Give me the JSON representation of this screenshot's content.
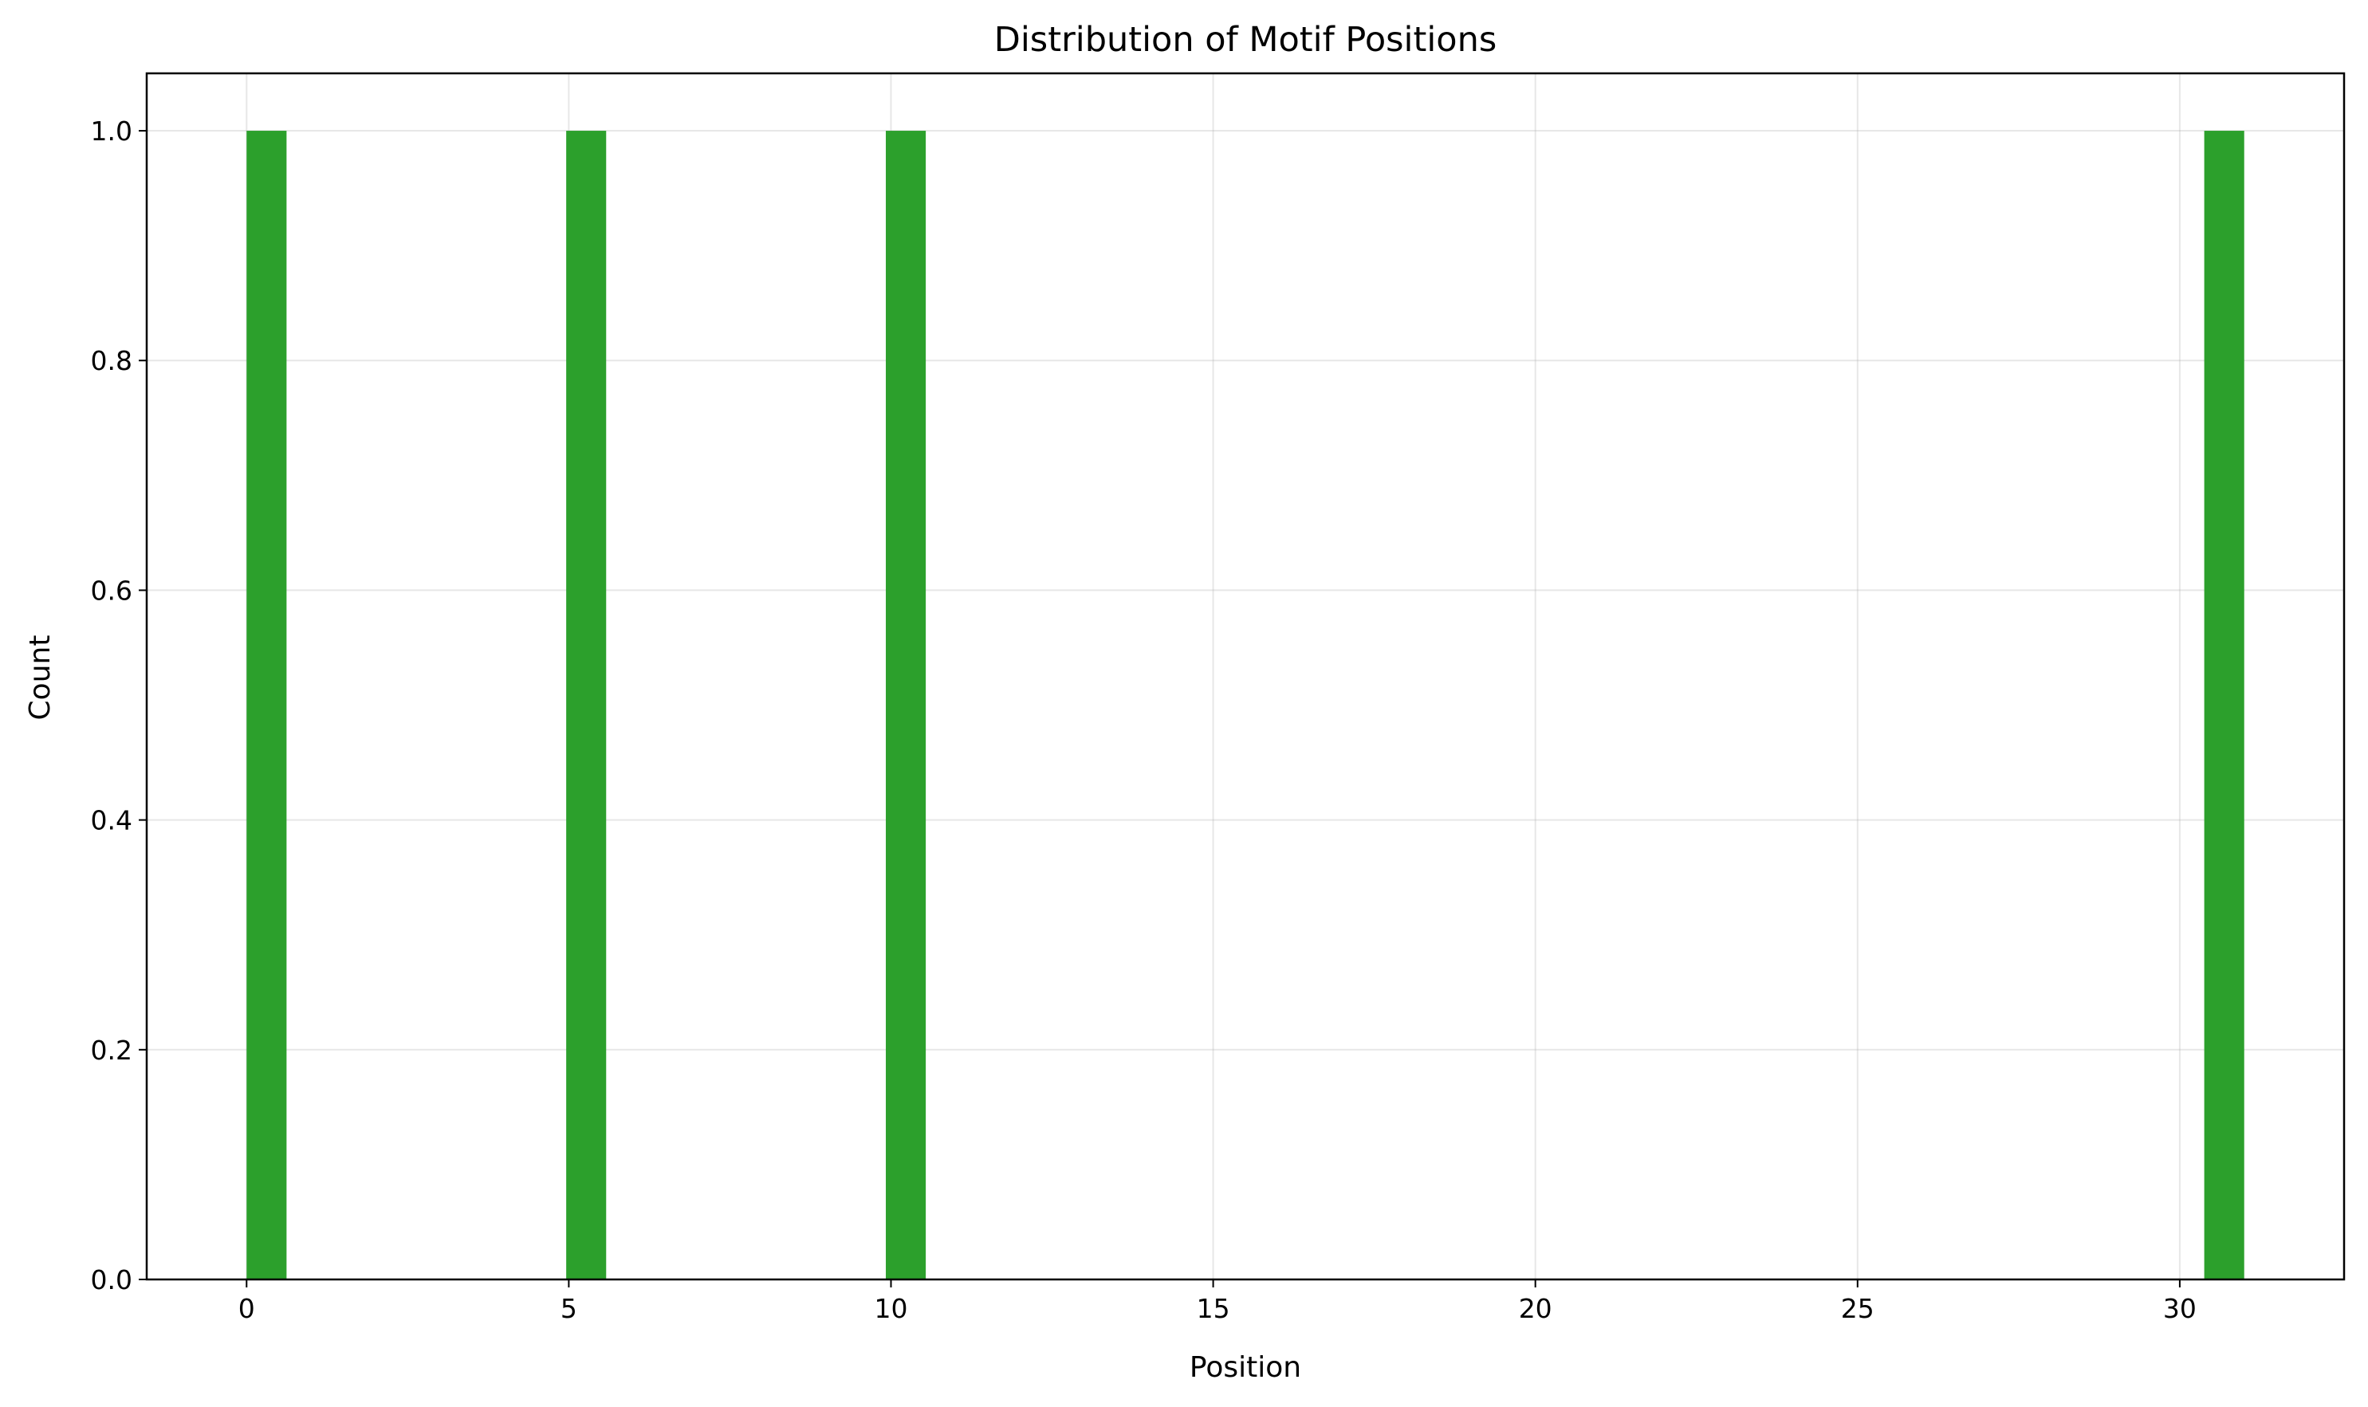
{
  "chart_data": {
    "type": "bar",
    "title": "Distribution of Motif Positions",
    "xlabel": "Position",
    "ylabel": "Count",
    "xlim": [
      -1.55,
      32.55
    ],
    "ylim": [
      0,
      1.05
    ],
    "x_ticks": [
      0,
      5,
      10,
      15,
      20,
      25,
      30
    ],
    "y_ticks": [
      "0.0",
      "0.2",
      "0.4",
      "0.6",
      "0.8",
      "1.0"
    ],
    "bins": [
      {
        "start": 0,
        "end": 0.62,
        "count": 1
      },
      {
        "start": 4.96,
        "end": 5.58,
        "count": 1
      },
      {
        "start": 9.92,
        "end": 10.54,
        "count": 1
      },
      {
        "start": 30.38,
        "end": 31.0,
        "count": 1
      }
    ],
    "bar_color": "#2ca02c",
    "grid": true
  }
}
